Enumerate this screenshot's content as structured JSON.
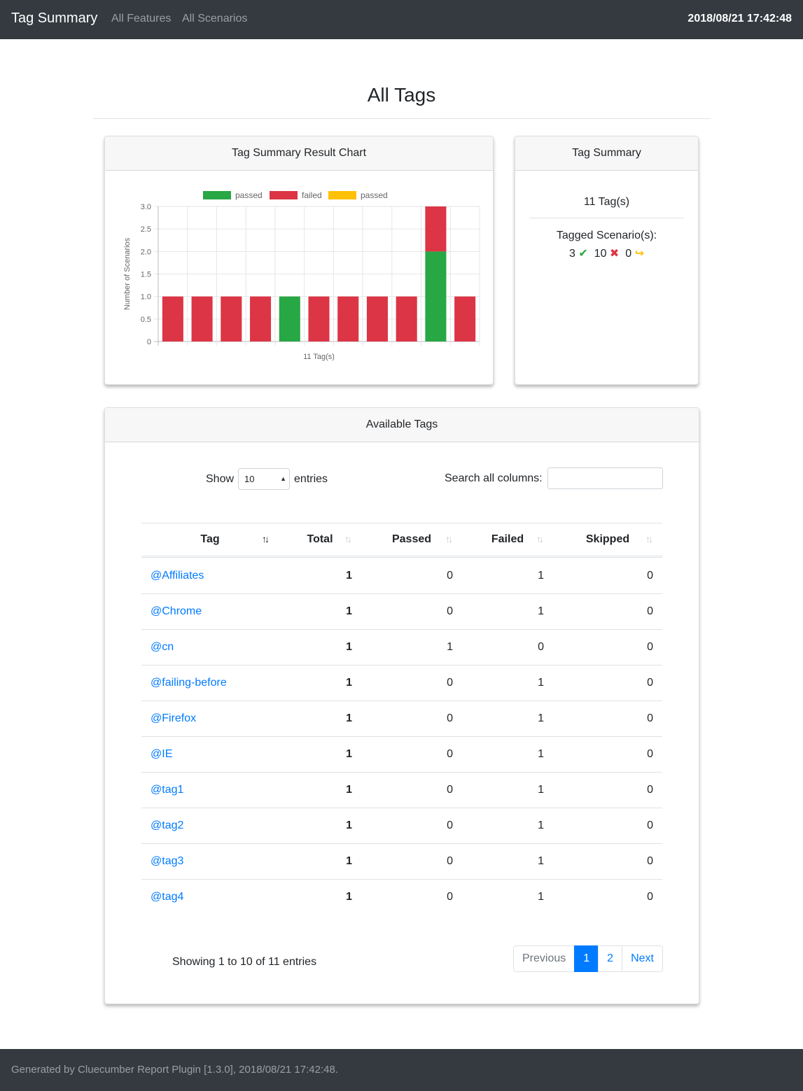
{
  "navbar": {
    "brand": "Tag Summary",
    "links": [
      "All Features",
      "All Scenarios"
    ],
    "datetime": "2018/08/21 17:42:48"
  },
  "page": {
    "title": "All Tags"
  },
  "chart_card": {
    "title": "Tag Summary Result Chart"
  },
  "chart_data": {
    "type": "bar",
    "stacked": true,
    "legend": [
      "passed",
      "failed",
      "passed"
    ],
    "legend_position": "top",
    "colors": [
      "#28a745",
      "#dc3545",
      "#ffc107"
    ],
    "xlabel": "11 Tag(s)",
    "ylabel": "Number of Scenarios",
    "ylim": [
      0,
      3
    ],
    "yticks": [
      "0",
      "0.5",
      "1.0",
      "1.5",
      "2.0",
      "2.5",
      "3.0"
    ],
    "grid": true,
    "series": [
      {
        "values": [
          0,
          0,
          0,
          0,
          1,
          0,
          0,
          0,
          0,
          2,
          0
        ]
      },
      {
        "values": [
          1,
          1,
          1,
          1,
          0,
          1,
          1,
          1,
          1,
          1,
          1
        ]
      },
      {
        "values": [
          0,
          0,
          0,
          0,
          0,
          0,
          0,
          0,
          0,
          0,
          0
        ]
      }
    ]
  },
  "summary_card": {
    "title": "Tag Summary",
    "tag_count": "11 Tag(s)",
    "scenarios_label": "Tagged Scenario(s):",
    "passed": "3",
    "failed": "10",
    "skipped": "0",
    "icons": [
      "check-icon",
      "cross-icon",
      "skip-arrow-icon"
    ]
  },
  "tags_card": {
    "title": "Available Tags",
    "show_label": "Show",
    "entries_label": "entries",
    "page_size": "10",
    "search_label": "Search all columns:",
    "search_value": "",
    "columns": [
      "Tag",
      "Total",
      "Passed",
      "Failed",
      "Skipped"
    ],
    "rows": [
      [
        "@Affiliates",
        "1",
        "0",
        "1",
        "0"
      ],
      [
        "@Chrome",
        "1",
        "0",
        "1",
        "0"
      ],
      [
        "@cn",
        "1",
        "1",
        "0",
        "0"
      ],
      [
        "@failing-before",
        "1",
        "0",
        "1",
        "0"
      ],
      [
        "@Firefox",
        "1",
        "0",
        "1",
        "0"
      ],
      [
        "@IE",
        "1",
        "0",
        "1",
        "0"
      ],
      [
        "@tag1",
        "1",
        "0",
        "1",
        "0"
      ],
      [
        "@tag2",
        "1",
        "0",
        "1",
        "0"
      ],
      [
        "@tag3",
        "1",
        "0",
        "1",
        "0"
      ],
      [
        "@tag4",
        "1",
        "0",
        "1",
        "0"
      ]
    ],
    "info": "Showing 1 to 10 of 11 entries",
    "pagination": {
      "previous": "Previous",
      "pages": [
        "1",
        "2"
      ],
      "active_page": "1",
      "next": "Next"
    }
  },
  "footer": {
    "text": "Generated by Cluecumber Report Plugin [1.3.0], 2018/08/21 17:42:48."
  }
}
